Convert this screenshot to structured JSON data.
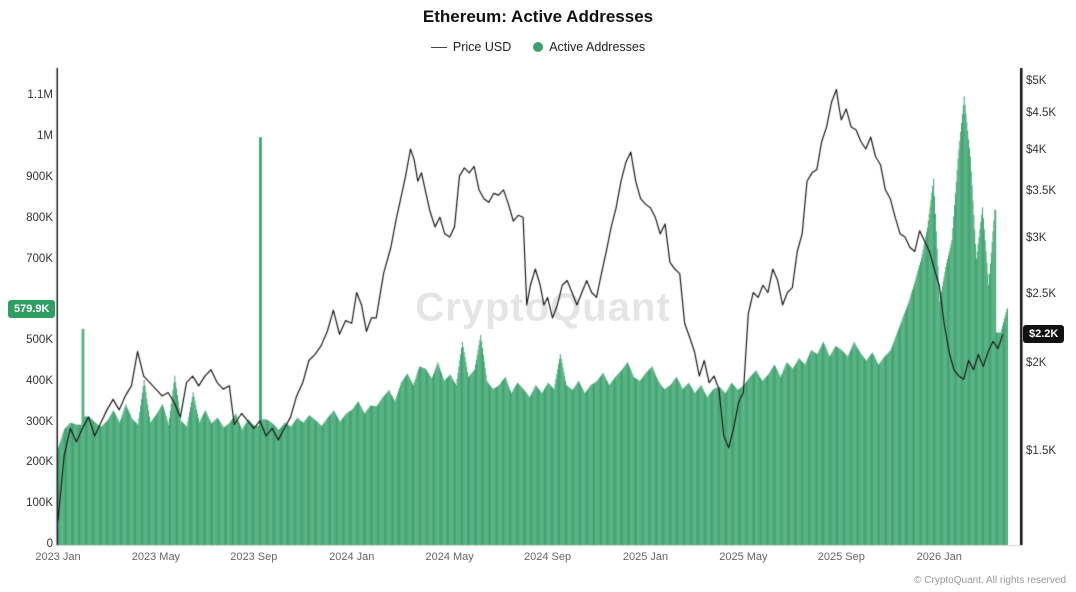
{
  "title": "Ethereum: Active Addresses",
  "watermark": "CryptoQuant",
  "footer": "© CryptoQuant. All rights reserved",
  "legend": [
    {
      "label": "Price USD",
      "type": "line",
      "color": "#1b1b1b"
    },
    {
      "label": "Active Addresses",
      "type": "dot",
      "color": "#3aa26c"
    }
  ],
  "badges": {
    "left": {
      "text": "579.9K",
      "value": 579900,
      "color": "#2e9e62"
    },
    "right": {
      "text": "$2.2K",
      "value": 2200,
      "color": "#111111"
    }
  },
  "chart_data": {
    "type": "bar",
    "title": "Ethereum: Active Addresses",
    "x_axis": {
      "span_months": 39.3,
      "start_label": "2023 Jan",
      "ticks": [
        {
          "m": 0,
          "label": "2023 Jan"
        },
        {
          "m": 4,
          "label": "2023 May"
        },
        {
          "m": 8,
          "label": "2023 Sep"
        },
        {
          "m": 12,
          "label": "2024 Jan"
        },
        {
          "m": 16,
          "label": "2024 May"
        },
        {
          "m": 20,
          "label": "2024 Sep"
        },
        {
          "m": 24,
          "label": "2025 Jan"
        },
        {
          "m": 28,
          "label": "2025 May"
        },
        {
          "m": 32,
          "label": "2025 Sep"
        },
        {
          "m": 36,
          "label": "2026 Jan"
        }
      ]
    },
    "left_axis": {
      "label": "Active Addresses",
      "min": 0,
      "max": 1160000,
      "ticks": [
        {
          "v": 1100000,
          "label": "1.1M"
        },
        {
          "v": 1000000,
          "label": "1M"
        },
        {
          "v": 900000,
          "label": "900K"
        },
        {
          "v": 800000,
          "label": "800K"
        },
        {
          "v": 700000,
          "label": "700K"
        },
        {
          "v": 500000,
          "label": "500K"
        },
        {
          "v": 400000,
          "label": "400K"
        },
        {
          "v": 300000,
          "label": "300K"
        },
        {
          "v": 200000,
          "label": "200K"
        },
        {
          "v": 100000,
          "label": "100K"
        },
        {
          "v": 0,
          "label": "0"
        }
      ]
    },
    "right_axis": {
      "label": "Price USD",
      "scale": "log",
      "min": 1108,
      "max": 5165,
      "ticks": [
        {
          "v": 5000,
          "label": "$5K"
        },
        {
          "v": 4500,
          "label": "$4.5K"
        },
        {
          "v": 4000,
          "label": "$4K"
        },
        {
          "v": 3500,
          "label": "$3.5K"
        },
        {
          "v": 3000,
          "label": "$3K"
        },
        {
          "v": 2500,
          "label": "$2.5K"
        },
        {
          "v": 2000,
          "label": "$2K"
        },
        {
          "v": 1500,
          "label": "$1.5K"
        }
      ]
    },
    "series": [
      {
        "name": "Active Addresses",
        "type": "bar",
        "axis": "left",
        "color": "#3aa26c",
        "unit": "addresses (thousands)",
        "start_month": 0,
        "step_months": 0.25,
        "values_k": [
          240,
          285,
          300,
          295,
          530,
          315,
          300,
          290,
          305,
          330,
          300,
          345,
          310,
          295,
          405,
          300,
          320,
          345,
          295,
          415,
          305,
          290,
          375,
          300,
          330,
          298,
          312,
          288,
          300,
          322,
          282,
          308,
          292,
          1000,
          308,
          298,
          282,
          300,
          290,
          312,
          300,
          318,
          306,
          292,
          312,
          330,
          302,
          322,
          332,
          352,
          322,
          342,
          340,
          362,
          380,
          352,
          398,
          420,
          392,
          438,
          432,
          408,
          448,
          402,
          418,
          392,
          498,
          412,
          430,
          515,
          402,
          382,
          392,
          412,
          372,
          398,
          382,
          362,
          392,
          372,
          398,
          382,
          468,
          392,
          380,
          402,
          372,
          392,
          402,
          422,
          392,
          412,
          428,
          448,
          412,
          402,
          422,
          438,
          402,
          382,
          392,
          412,
          382,
          398,
          372,
          392,
          362,
          382,
          388,
          372,
          398,
          380,
          392,
          412,
          428,
          402,
          418,
          442,
          412,
          448,
          432,
          458,
          442,
          478,
          468,
          498,
          462,
          488,
          478,
          462,
          498,
          472,
          452,
          472,
          442,
          462,
          478,
          518,
          558,
          598,
          648,
          702,
          778,
          898,
          598,
          682,
          748,
          948,
          1100,
          952,
          702,
          828,
          638,
          822,
          521,
          579.9
        ]
      },
      {
        "name": "Price USD",
        "type": "line",
        "axis": "right",
        "color": "#1b1b1b",
        "unit": "USD (thousands)",
        "points": [
          [
            0,
            1.2
          ],
          [
            0.25,
            1.48
          ],
          [
            0.5,
            1.62
          ],
          [
            0.75,
            1.55
          ],
          [
            1,
            1.62
          ],
          [
            1.25,
            1.68
          ],
          [
            1.5,
            1.58
          ],
          [
            1.75,
            1.65
          ],
          [
            2,
            1.72
          ],
          [
            2.25,
            1.78
          ],
          [
            2.5,
            1.72
          ],
          [
            2.75,
            1.8
          ],
          [
            3,
            1.86
          ],
          [
            3.25,
            2.08
          ],
          [
            3.5,
            1.92
          ],
          [
            3.75,
            1.88
          ],
          [
            4,
            1.84
          ],
          [
            4.25,
            1.8
          ],
          [
            4.5,
            1.82
          ],
          [
            4.75,
            1.76
          ],
          [
            5,
            1.68
          ],
          [
            5.25,
            1.88
          ],
          [
            5.5,
            1.92
          ],
          [
            5.75,
            1.86
          ],
          [
            6,
            1.92
          ],
          [
            6.25,
            1.96
          ],
          [
            6.5,
            1.88
          ],
          [
            6.75,
            1.84
          ],
          [
            7,
            1.86
          ],
          [
            7.2,
            1.64
          ],
          [
            7.5,
            1.7
          ],
          [
            7.75,
            1.66
          ],
          [
            8,
            1.62
          ],
          [
            8.25,
            1.66
          ],
          [
            8.5,
            1.58
          ],
          [
            8.75,
            1.62
          ],
          [
            9,
            1.56
          ],
          [
            9.25,
            1.62
          ],
          [
            9.5,
            1.68
          ],
          [
            9.75,
            1.8
          ],
          [
            10,
            1.88
          ],
          [
            10.25,
            2.02
          ],
          [
            10.5,
            2.06
          ],
          [
            10.75,
            2.12
          ],
          [
            11,
            2.22
          ],
          [
            11.25,
            2.38
          ],
          [
            11.5,
            2.2
          ],
          [
            11.75,
            2.3
          ],
          [
            12,
            2.28
          ],
          [
            12.2,
            2.52
          ],
          [
            12.4,
            2.42
          ],
          [
            12.6,
            2.22
          ],
          [
            12.8,
            2.32
          ],
          [
            13,
            2.32
          ],
          [
            13.3,
            2.68
          ],
          [
            13.6,
            2.92
          ],
          [
            13.8,
            3.18
          ],
          [
            14,
            3.42
          ],
          [
            14.2,
            3.68
          ],
          [
            14.4,
            4.02
          ],
          [
            14.55,
            3.88
          ],
          [
            14.7,
            3.62
          ],
          [
            14.85,
            3.72
          ],
          [
            15,
            3.52
          ],
          [
            15.2,
            3.28
          ],
          [
            15.4,
            3.12
          ],
          [
            15.6,
            3.22
          ],
          [
            15.8,
            3.05
          ],
          [
            16,
            3.02
          ],
          [
            16.2,
            3.12
          ],
          [
            16.4,
            3.68
          ],
          [
            16.6,
            3.78
          ],
          [
            16.8,
            3.72
          ],
          [
            17,
            3.8
          ],
          [
            17.2,
            3.52
          ],
          [
            17.4,
            3.42
          ],
          [
            17.6,
            3.38
          ],
          [
            17.8,
            3.48
          ],
          [
            18,
            3.46
          ],
          [
            18.2,
            3.52
          ],
          [
            18.4,
            3.36
          ],
          [
            18.6,
            3.18
          ],
          [
            18.8,
            3.24
          ],
          [
            19,
            3.22
          ],
          [
            19.15,
            2.42
          ],
          [
            19.3,
            2.58
          ],
          [
            19.5,
            2.72
          ],
          [
            19.7,
            2.58
          ],
          [
            19.85,
            2.42
          ],
          [
            20,
            2.48
          ],
          [
            20.2,
            2.32
          ],
          [
            20.4,
            2.42
          ],
          [
            20.6,
            2.58
          ],
          [
            20.8,
            2.62
          ],
          [
            21,
            2.52
          ],
          [
            21.2,
            2.42
          ],
          [
            21.4,
            2.52
          ],
          [
            21.6,
            2.62
          ],
          [
            21.8,
            2.52
          ],
          [
            22,
            2.48
          ],
          [
            22.2,
            2.68
          ],
          [
            22.4,
            2.88
          ],
          [
            22.6,
            3.12
          ],
          [
            22.8,
            3.32
          ],
          [
            23,
            3.62
          ],
          [
            23.2,
            3.85
          ],
          [
            23.4,
            3.98
          ],
          [
            23.6,
            3.62
          ],
          [
            23.8,
            3.42
          ],
          [
            24,
            3.36
          ],
          [
            24.2,
            3.32
          ],
          [
            24.4,
            3.22
          ],
          [
            24.6,
            3.05
          ],
          [
            24.8,
            3.15
          ],
          [
            25,
            2.78
          ],
          [
            25.2,
            2.72
          ],
          [
            25.4,
            2.68
          ],
          [
            25.6,
            2.28
          ],
          [
            25.8,
            2.18
          ],
          [
            26,
            2.08
          ],
          [
            26.2,
            1.92
          ],
          [
            26.4,
            2.02
          ],
          [
            26.6,
            1.88
          ],
          [
            26.8,
            1.92
          ],
          [
            27,
            1.84
          ],
          [
            27.2,
            1.58
          ],
          [
            27.4,
            1.52
          ],
          [
            27.6,
            1.62
          ],
          [
            27.8,
            1.76
          ],
          [
            28,
            1.82
          ],
          [
            28.2,
            2.35
          ],
          [
            28.4,
            2.52
          ],
          [
            28.6,
            2.48
          ],
          [
            28.8,
            2.58
          ],
          [
            29,
            2.52
          ],
          [
            29.2,
            2.72
          ],
          [
            29.4,
            2.62
          ],
          [
            29.6,
            2.42
          ],
          [
            29.8,
            2.52
          ],
          [
            30,
            2.56
          ],
          [
            30.2,
            2.88
          ],
          [
            30.4,
            3.05
          ],
          [
            30.6,
            3.62
          ],
          [
            30.8,
            3.72
          ],
          [
            31,
            3.76
          ],
          [
            31.2,
            4.12
          ],
          [
            31.4,
            4.32
          ],
          [
            31.6,
            4.68
          ],
          [
            31.8,
            4.88
          ],
          [
            31.9,
            4.62
          ],
          [
            32,
            4.42
          ],
          [
            32.2,
            4.58
          ],
          [
            32.4,
            4.32
          ],
          [
            32.6,
            4.28
          ],
          [
            32.8,
            4.12
          ],
          [
            33,
            4.02
          ],
          [
            33.2,
            4.18
          ],
          [
            33.4,
            3.92
          ],
          [
            33.6,
            3.82
          ],
          [
            33.8,
            3.52
          ],
          [
            34,
            3.42
          ],
          [
            34.2,
            3.22
          ],
          [
            34.4,
            3.05
          ],
          [
            34.6,
            3.02
          ],
          [
            34.8,
            2.92
          ],
          [
            35,
            2.88
          ],
          [
            35.2,
            3.08
          ],
          [
            35.4,
            2.98
          ],
          [
            35.6,
            2.88
          ],
          [
            35.8,
            2.72
          ],
          [
            36,
            2.58
          ],
          [
            36.2,
            2.28
          ],
          [
            36.4,
            2.08
          ],
          [
            36.6,
            1.96
          ],
          [
            36.8,
            1.92
          ],
          [
            37,
            1.9
          ],
          [
            37.2,
            2.02
          ],
          [
            37.4,
            1.96
          ],
          [
            37.6,
            2.06
          ],
          [
            37.8,
            1.98
          ],
          [
            38,
            2.08
          ],
          [
            38.2,
            2.15
          ],
          [
            38.4,
            2.1
          ],
          [
            38.6,
            2.2
          ]
        ]
      }
    ]
  }
}
